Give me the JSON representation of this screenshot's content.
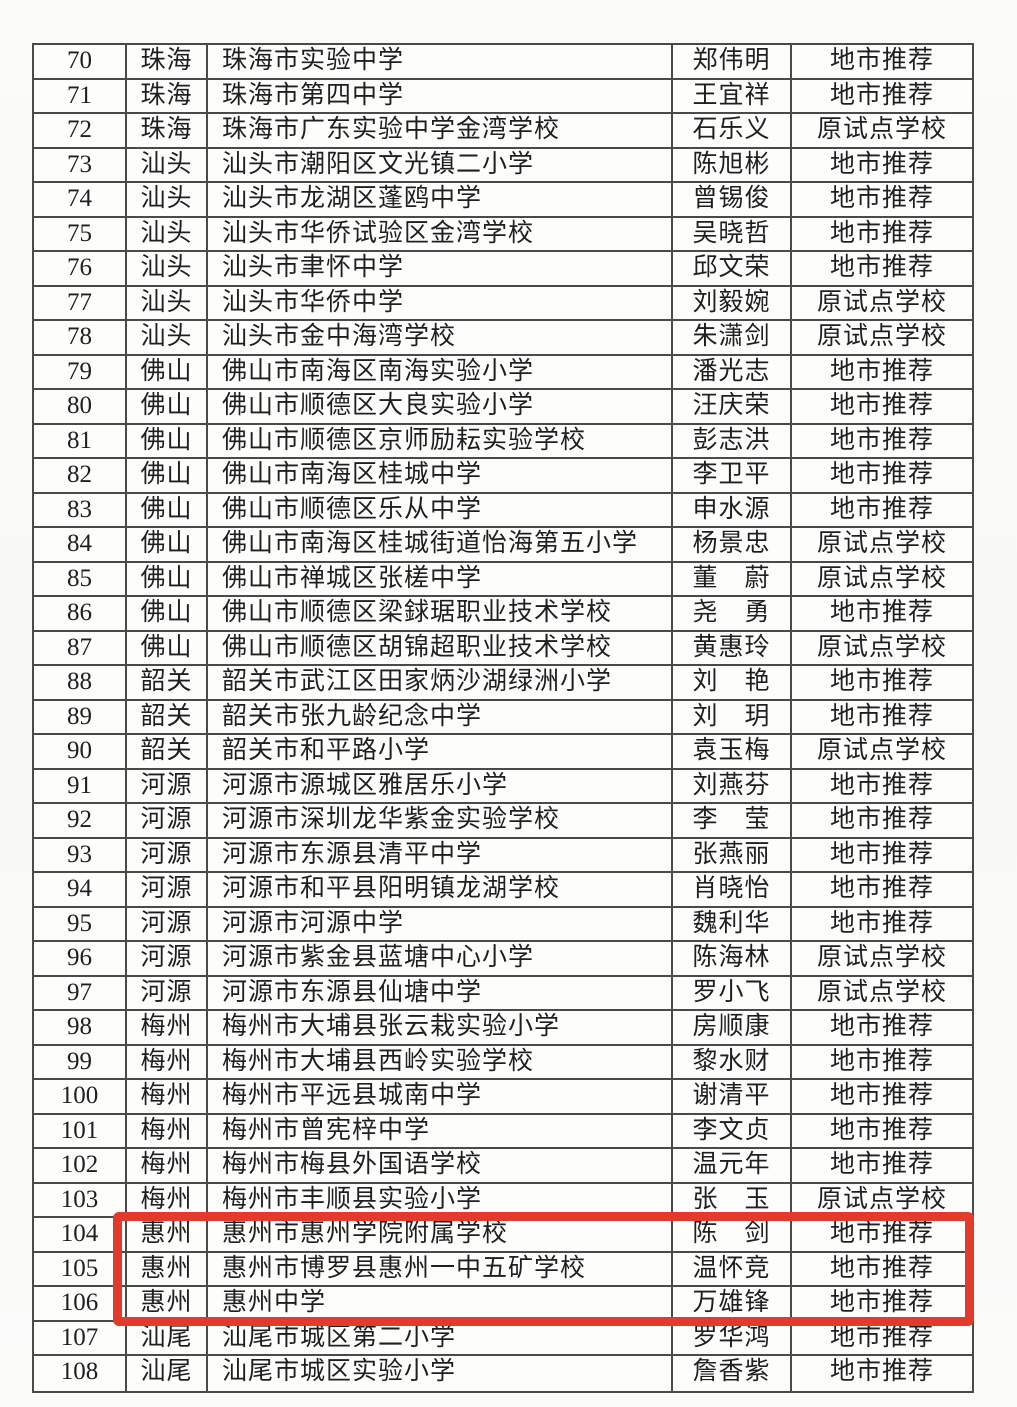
{
  "table": {
    "rows": [
      {
        "no": "70",
        "city": "珠海",
        "school": "珠海市实验中学",
        "person": "郑伟明",
        "category": "地市推荐"
      },
      {
        "no": "71",
        "city": "珠海",
        "school": "珠海市第四中学",
        "person": "王宜祥",
        "category": "地市推荐"
      },
      {
        "no": "72",
        "city": "珠海",
        "school": "珠海市广东实验中学金湾学校",
        "person": "石乐义",
        "category": "原试点学校"
      },
      {
        "no": "73",
        "city": "汕头",
        "school": "汕头市潮阳区文光镇二小学",
        "person": "陈旭彬",
        "category": "地市推荐"
      },
      {
        "no": "74",
        "city": "汕头",
        "school": "汕头市龙湖区蓬鸥中学",
        "person": "曾锡俊",
        "category": "地市推荐"
      },
      {
        "no": "75",
        "city": "汕头",
        "school": "汕头市华侨试验区金湾学校",
        "person": "吴晓哲",
        "category": "地市推荐"
      },
      {
        "no": "76",
        "city": "汕头",
        "school": "汕头市聿怀中学",
        "person": "邱文荣",
        "category": "地市推荐"
      },
      {
        "no": "77",
        "city": "汕头",
        "school": "汕头市华侨中学",
        "person": "刘毅婉",
        "category": "原试点学校"
      },
      {
        "no": "78",
        "city": "汕头",
        "school": "汕头市金中海湾学校",
        "person": "朱潇剑",
        "category": "原试点学校"
      },
      {
        "no": "79",
        "city": "佛山",
        "school": "佛山市南海区南海实验小学",
        "person": "潘光志",
        "category": "地市推荐"
      },
      {
        "no": "80",
        "city": "佛山",
        "school": "佛山市顺德区大良实验小学",
        "person": "汪庆荣",
        "category": "地市推荐"
      },
      {
        "no": "81",
        "city": "佛山",
        "school": "佛山市顺德区京师励耘实验学校",
        "person": "彭志洪",
        "category": "地市推荐"
      },
      {
        "no": "82",
        "city": "佛山",
        "school": "佛山市南海区桂城中学",
        "person": "李卫平",
        "category": "地市推荐"
      },
      {
        "no": "83",
        "city": "佛山",
        "school": "佛山市顺德区乐从中学",
        "person": "申水源",
        "category": "地市推荐"
      },
      {
        "no": "84",
        "city": "佛山",
        "school": "佛山市南海区桂城街道怡海第五小学",
        "person": "杨景忠",
        "category": "原试点学校"
      },
      {
        "no": "85",
        "city": "佛山",
        "school": "佛山市禅城区张槎中学",
        "person": "董　蔚",
        "category": "原试点学校"
      },
      {
        "no": "86",
        "city": "佛山",
        "school": "佛山市顺德区梁銶琚职业技术学校",
        "person": "尧　勇",
        "category": "地市推荐"
      },
      {
        "no": "87",
        "city": "佛山",
        "school": "佛山市顺德区胡锦超职业技术学校",
        "person": "黄惠玲",
        "category": "原试点学校"
      },
      {
        "no": "88",
        "city": "韶关",
        "school": "韶关市武江区田家炳沙湖绿洲小学",
        "person": "刘　艳",
        "category": "地市推荐"
      },
      {
        "no": "89",
        "city": "韶关",
        "school": "韶关市张九龄纪念中学",
        "person": "刘　玥",
        "category": "地市推荐"
      },
      {
        "no": "90",
        "city": "韶关",
        "school": "韶关市和平路小学",
        "person": "袁玉梅",
        "category": "原试点学校"
      },
      {
        "no": "91",
        "city": "河源",
        "school": "河源市源城区雅居乐小学",
        "person": "刘燕芬",
        "category": "地市推荐"
      },
      {
        "no": "92",
        "city": "河源",
        "school": "河源市深圳龙华紫金实验学校",
        "person": "李　莹",
        "category": "地市推荐"
      },
      {
        "no": "93",
        "city": "河源",
        "school": "河源市东源县清平中学",
        "person": "张燕丽",
        "category": "地市推荐"
      },
      {
        "no": "94",
        "city": "河源",
        "school": "河源市和平县阳明镇龙湖学校",
        "person": "肖晓怡",
        "category": "地市推荐"
      },
      {
        "no": "95",
        "city": "河源",
        "school": "河源市河源中学",
        "person": "魏利华",
        "category": "地市推荐"
      },
      {
        "no": "96",
        "city": "河源",
        "school": "河源市紫金县蓝塘中心小学",
        "person": "陈海林",
        "category": "原试点学校"
      },
      {
        "no": "97",
        "city": "河源",
        "school": "河源市东源县仙塘中学",
        "person": "罗小飞",
        "category": "原试点学校"
      },
      {
        "no": "98",
        "city": "梅州",
        "school": "梅州市大埔县张云栽实验小学",
        "person": "房顺康",
        "category": "地市推荐"
      },
      {
        "no": "99",
        "city": "梅州",
        "school": "梅州市大埔县西岭实验学校",
        "person": "黎水财",
        "category": "地市推荐"
      },
      {
        "no": "100",
        "city": "梅州",
        "school": "梅州市平远县城南中学",
        "person": "谢清平",
        "category": "地市推荐"
      },
      {
        "no": "101",
        "city": "梅州",
        "school": "梅州市曾宪梓中学",
        "person": "李文贞",
        "category": "地市推荐"
      },
      {
        "no": "102",
        "city": "梅州",
        "school": "梅州市梅县外国语学校",
        "person": "温元年",
        "category": "地市推荐"
      },
      {
        "no": "103",
        "city": "梅州",
        "school": "梅州市丰顺县实验小学",
        "person": "张　玉",
        "category": "原试点学校"
      },
      {
        "no": "104",
        "city": "惠州",
        "school": "惠州市惠州学院附属学校",
        "person": "陈　剑",
        "category": "地市推荐"
      },
      {
        "no": "105",
        "city": "惠州",
        "school": "惠州市博罗县惠州一中五矿学校",
        "person": "温怀竞",
        "category": "地市推荐"
      },
      {
        "no": "106",
        "city": "惠州",
        "school": "惠州中学",
        "person": "万雄锋",
        "category": "地市推荐"
      },
      {
        "no": "107",
        "city": "汕尾",
        "school": "汕尾市城区第二小学",
        "person": "罗华鸿",
        "category": "地市推荐"
      },
      {
        "no": "108",
        "city": "汕尾",
        "school": "汕尾市城区实验小学",
        "person": "詹香紫",
        "category": "地市推荐"
      }
    ]
  },
  "highlight": {
    "row_numbers": [
      "104",
      "105",
      "106"
    ],
    "color": "#e23b2b"
  }
}
